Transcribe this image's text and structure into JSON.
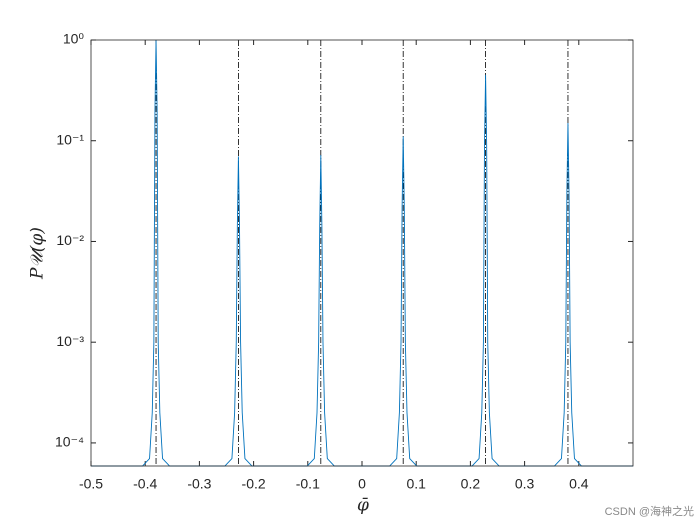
{
  "chart_data": {
    "type": "line",
    "log_y": true,
    "xlabel": "φ̄",
    "ylabel": "P𝒰(φ)",
    "xlim": [
      -0.5,
      0.5
    ],
    "ylim": [
      5.9e-05,
      1
    ],
    "xticks": [
      -0.5,
      -0.4,
      -0.3,
      -0.2,
      -0.1,
      0,
      0.1,
      0.2,
      0.3,
      0.4
    ],
    "yticks": [
      {
        "value": 0.0001,
        "label": "10⁻⁴"
      },
      {
        "value": 0.001,
        "label": "10⁻³"
      },
      {
        "value": 0.01,
        "label": "10⁻²"
      },
      {
        "value": 0.1,
        "label": "10⁻¹"
      },
      {
        "value": 1,
        "label": "10⁰"
      }
    ],
    "grid": false,
    "x": [
      -0.5,
      -0.405,
      -0.392,
      -0.387,
      -0.384,
      -0.382,
      -0.38,
      -0.378,
      -0.376,
      -0.373,
      -0.368,
      -0.355,
      -0.253,
      -0.24,
      -0.235,
      -0.232,
      -0.23,
      -0.228,
      -0.226,
      -0.224,
      -0.221,
      -0.216,
      -0.203,
      -0.101,
      -0.088,
      -0.083,
      -0.08,
      -0.078,
      -0.076,
      -0.074,
      -0.072,
      -0.069,
      -0.064,
      -0.051,
      0.051,
      0.064,
      0.069,
      0.072,
      0.074,
      0.076,
      0.078,
      0.08,
      0.083,
      0.088,
      0.101,
      0.203,
      0.216,
      0.221,
      0.224,
      0.226,
      0.228,
      0.23,
      0.232,
      0.235,
      0.24,
      0.253,
      0.355,
      0.368,
      0.373,
      0.376,
      0.378,
      0.38,
      0.382,
      0.384,
      0.387,
      0.392,
      0.405,
      0.5
    ],
    "series": [
      {
        "color": "#0072bd",
        "values": [
          5.9e-05,
          5.9e-05,
          7e-05,
          0.0002,
          0.001,
          0.2,
          1,
          0.2,
          0.001,
          0.0002,
          7e-05,
          5.9e-05,
          5.9e-05,
          7e-05,
          0.0002,
          0.001,
          0.014,
          0.07,
          0.014,
          0.001,
          0.0002,
          7e-05,
          5.9e-05,
          5.9e-05,
          7e-05,
          0.0002,
          0.001,
          0.0144,
          0.072,
          0.0144,
          0.001,
          0.0002,
          7e-05,
          5.9e-05,
          5.9e-05,
          7e-05,
          0.0002,
          0.001,
          0.022,
          0.11,
          0.022,
          0.001,
          0.0002,
          7e-05,
          5.9e-05,
          5.9e-05,
          7e-05,
          0.0002,
          0.001,
          0.09,
          0.45,
          0.09,
          0.001,
          0.0002,
          7e-05,
          5.9e-05,
          5.9e-05,
          7e-05,
          0.0002,
          0.001,
          0.03,
          0.15,
          0.03,
          0.001,
          0.0002,
          7e-05,
          5.9e-05,
          5.9e-05
        ]
      }
    ],
    "vlines": {
      "color": "#000000",
      "x": [
        -0.38,
        -0.228,
        -0.076,
        0.076,
        0.228,
        0.38
      ]
    }
  },
  "watermark": "CSDN @海神之光"
}
